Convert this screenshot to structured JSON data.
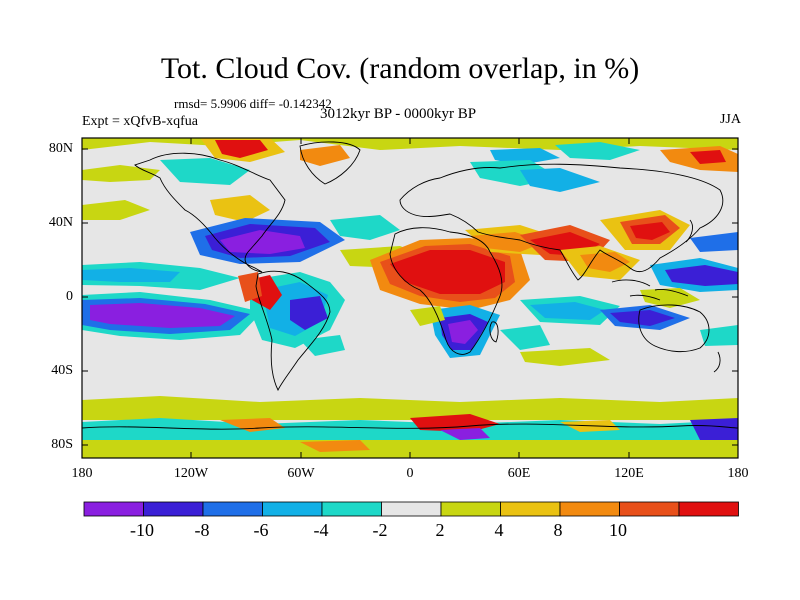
{
  "title": "Tot. Cloud Cov. (random overlap, in %)",
  "stats": "rmsd= 5.9906 diff= -0.142342",
  "expt": "Expt = xQfvB-xqfua",
  "period": "3012kyr BP - 0000kyr BP",
  "season": "JJA",
  "lon_ticks": [
    "180",
    "120W",
    "60W",
    "0",
    "60E",
    "120E",
    "180"
  ],
  "lat_ticks": [
    "80N",
    "40N",
    "0",
    "40S",
    "80S"
  ],
  "colorbar": {
    "labels": [
      "-10",
      "-8",
      "-6",
      "-4",
      "-2",
      "2",
      "4",
      "8",
      "10"
    ],
    "colors": [
      "#8a1fe0",
      "#3b1fd6",
      "#1f6fe8",
      "#12b0e6",
      "#1ed8c8",
      "#e6e6e6",
      "#c8d612",
      "#eac212",
      "#f28a10",
      "#e8501a",
      "#e01010"
    ]
  }
}
